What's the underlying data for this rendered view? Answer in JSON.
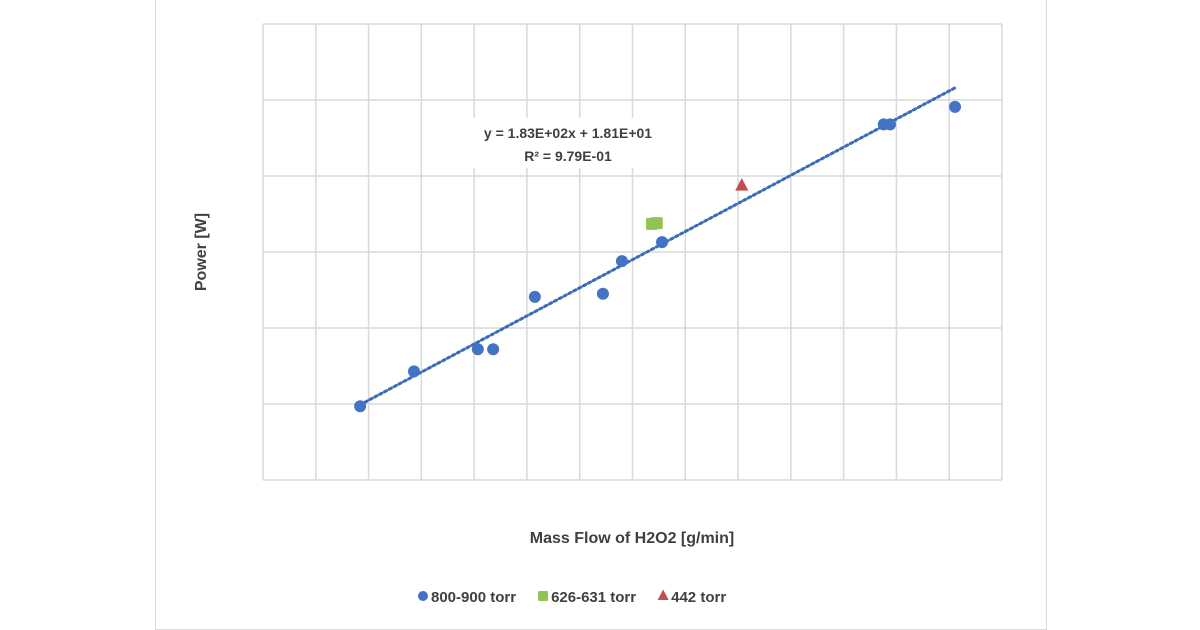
{
  "chart_data": {
    "type": "scatter",
    "title": "",
    "xlabel": "Mass Flow of H2O2 [g/min]",
    "ylabel": "Power [W]",
    "xlim": [
      0,
      14
    ],
    "ylim": [
      0,
      6
    ],
    "x_tick_labels_shown": false,
    "y_tick_labels_shown": false,
    "grid": true,
    "legend_placement": "bottom",
    "series": [
      {
        "name": "800-900 torr",
        "marker": "circle",
        "color": "#4472c4",
        "points": [
          [
            1.84,
            0.97
          ],
          [
            2.86,
            1.43
          ],
          [
            4.07,
            1.72
          ],
          [
            4.36,
            1.72
          ],
          [
            5.15,
            2.41
          ],
          [
            6.44,
            2.45
          ],
          [
            6.8,
            2.88
          ],
          [
            7.56,
            3.13
          ],
          [
            11.76,
            4.68
          ],
          [
            11.88,
            4.68
          ],
          [
            13.11,
            4.91
          ]
        ]
      },
      {
        "name": "626-631 torr",
        "marker": "square",
        "color": "#92c353",
        "points": [
          [
            7.37,
            3.37
          ],
          [
            7.46,
            3.38
          ]
        ]
      },
      {
        "name": "442 torr",
        "marker": "triangle",
        "color": "#c0504d",
        "points": [
          [
            9.07,
            3.87
          ]
        ]
      }
    ],
    "trendline": {
      "style": "dotted",
      "color": "#3a6bb8",
      "x_range": [
        1.84,
        13.11
      ],
      "y_range": [
        0.99,
        5.16
      ],
      "equation": "y = 1.83E+02x + 1.81E+01",
      "r_squared": "R² = 9.79E-01"
    }
  }
}
